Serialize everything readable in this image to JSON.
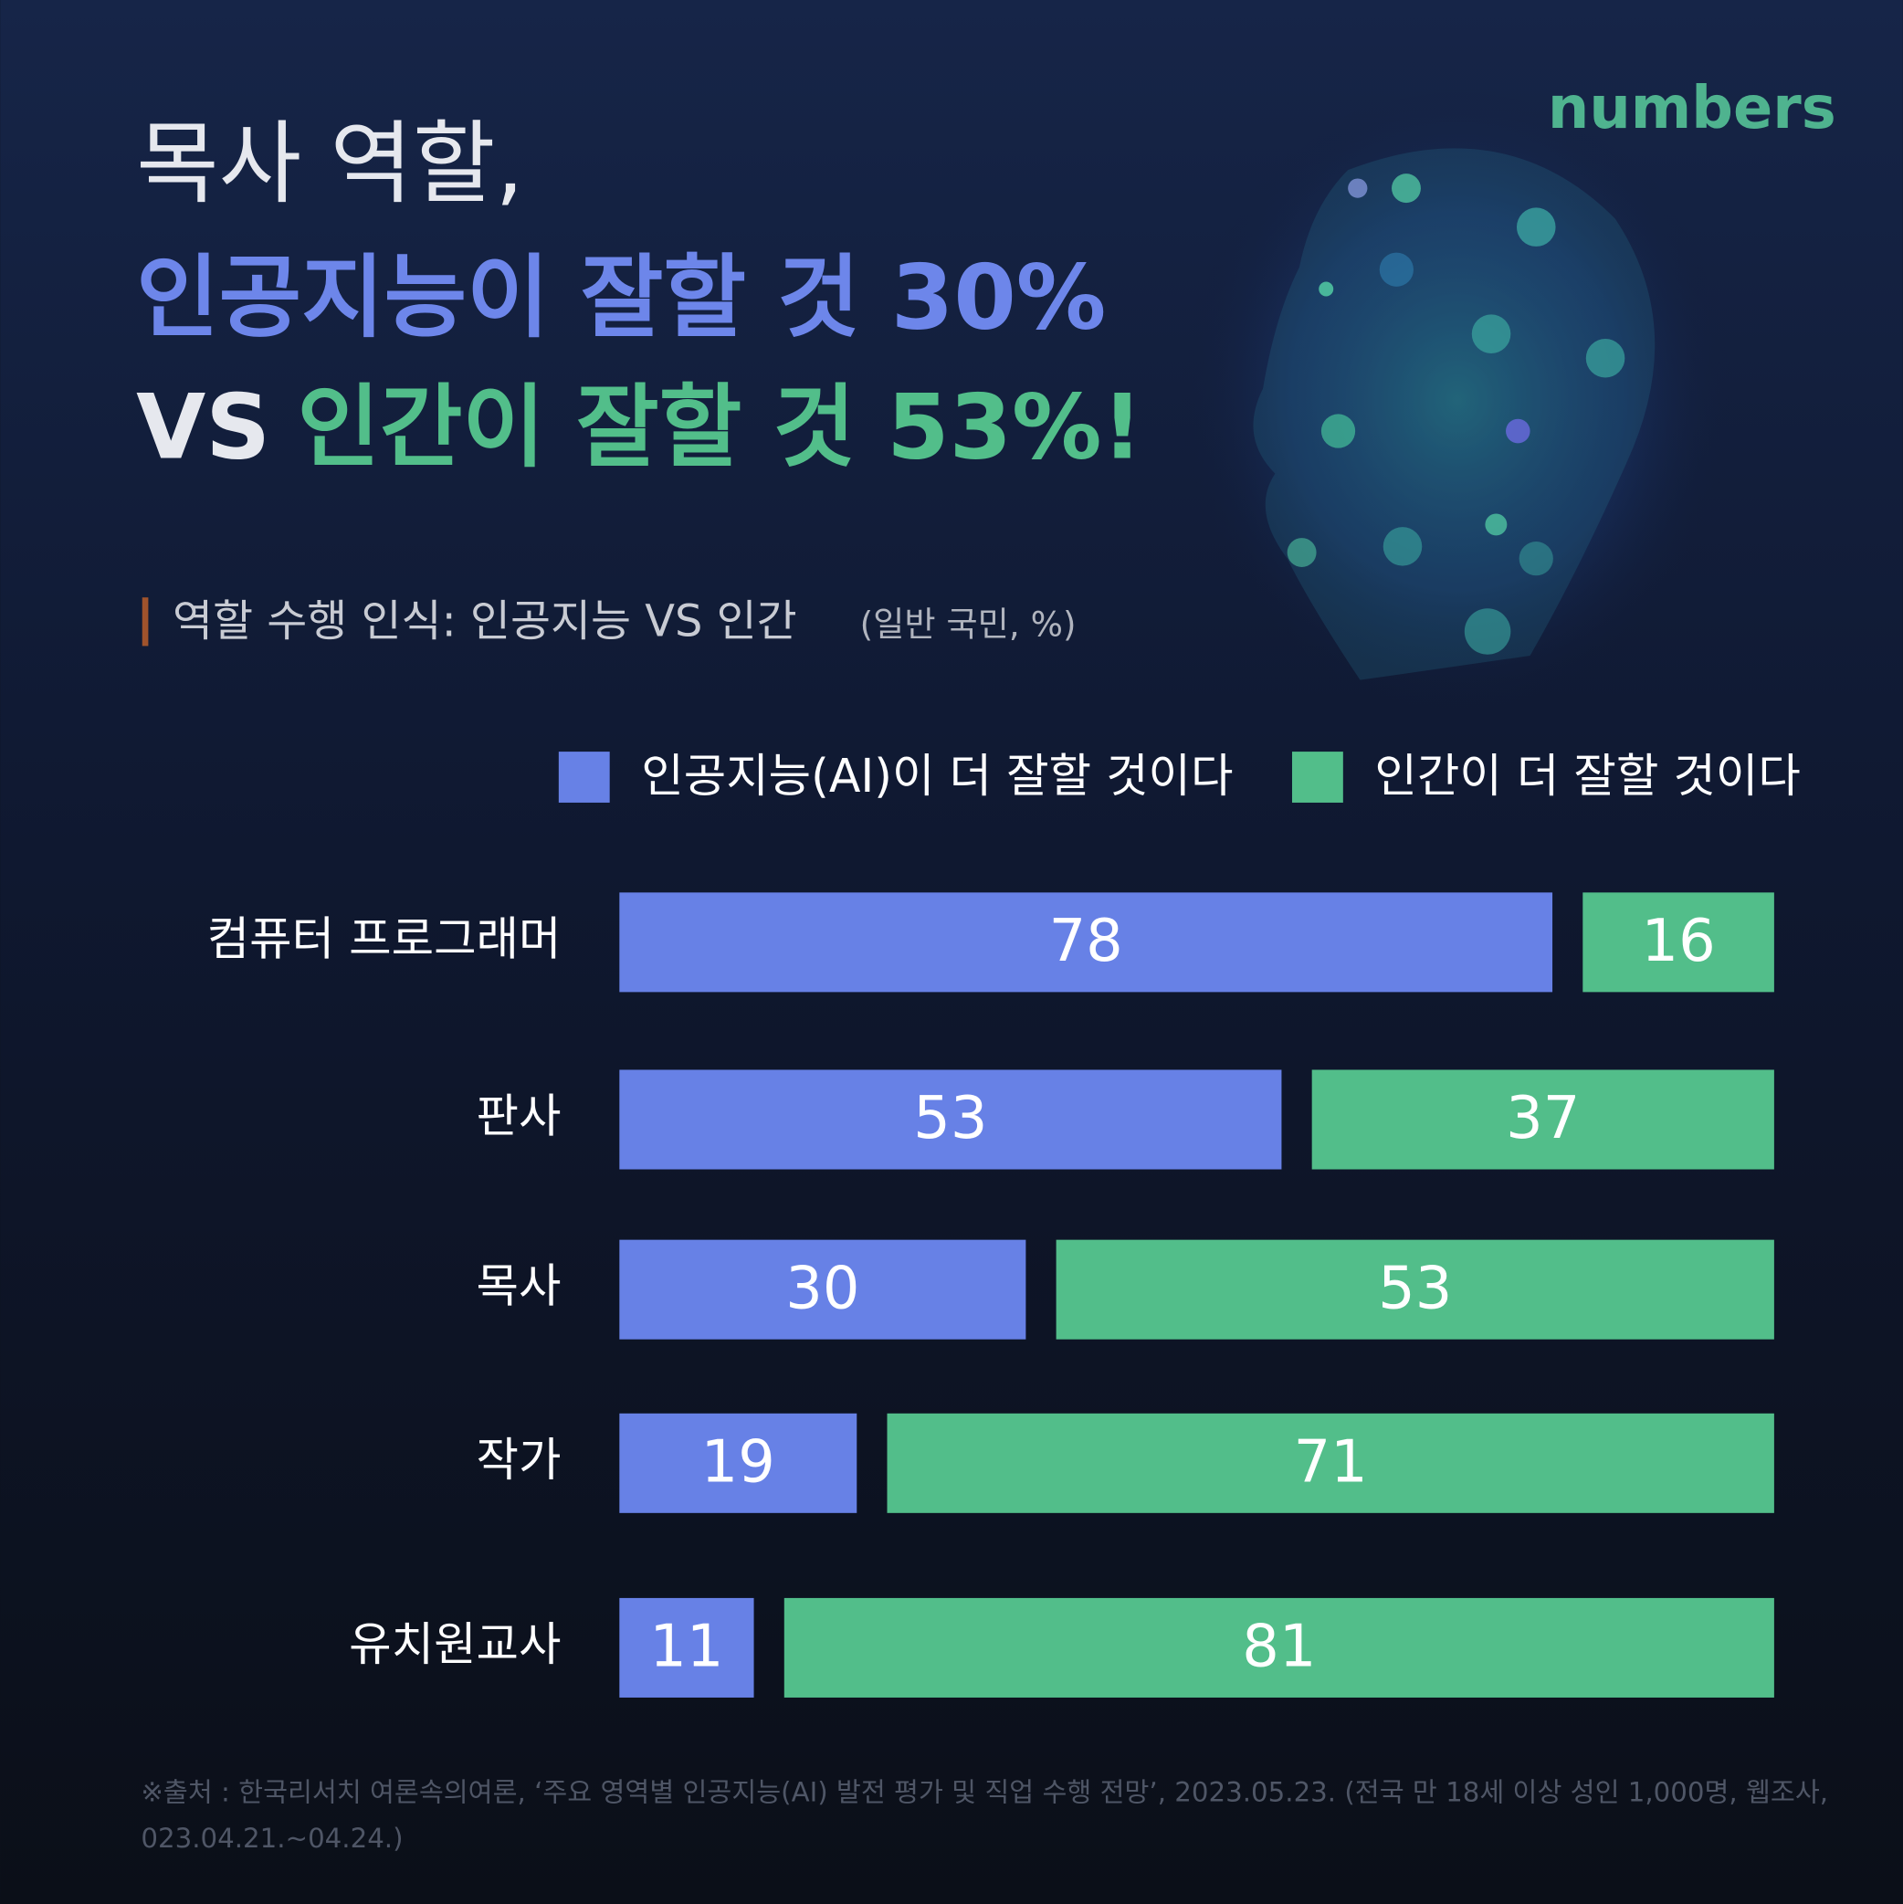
{
  "chart_data": {
    "type": "bar",
    "orientation": "horizontal",
    "logo": "numbers",
    "title": {
      "line1": "목사 역할,",
      "line2": "인공지능이 잘할 것 30%",
      "line3_prefix": "VS",
      "line3": "인간이 잘할 것 53%!"
    },
    "subtitle": "역할 수행 인식: 인공지능 VS 인간",
    "unit_note": "(일반 국민, %)",
    "categories": [
      "컴퓨터 프로그래머",
      "판사",
      "목사",
      "작가",
      "유치원교사"
    ],
    "series": [
      {
        "name": "인공지능(AI)이 더 잘할 것이다",
        "color": "#6781e6",
        "values": [
          78,
          53,
          30,
          19,
          11
        ]
      },
      {
        "name": "인간이 더 잘할 것이다",
        "color": "#52be8a",
        "values": [
          16,
          37,
          53,
          71,
          81
        ]
      }
    ],
    "source": [
      "※출처 : 한국리서치 여론속의여론, ‘주요 영역별 인공지능(AI) 발전 평가 및 직업 수행 전망’, 2023.05.23. (전국 만 18세 이상 성인 1,000명, 웹조사,",
      "023.04.21.~04.24.)"
    ]
  }
}
